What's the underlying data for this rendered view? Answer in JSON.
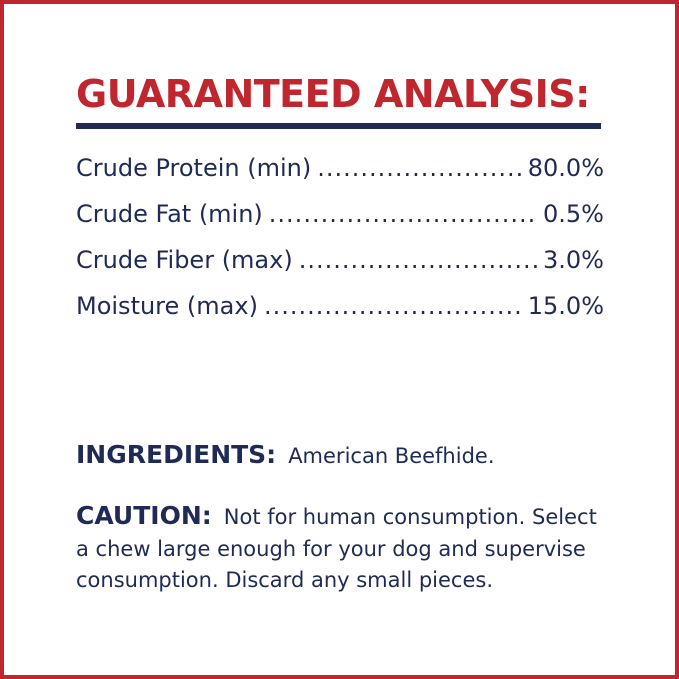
{
  "title": "GUARANTEED ANALYSIS:",
  "analysis": [
    {
      "label": "Crude Protein (min)",
      "value": "80.0%"
    },
    {
      "label": "Crude Fat (min)",
      "value": "0.5%"
    },
    {
      "label": "Crude Fiber (max)",
      "value": "3.0%"
    },
    {
      "label": "Moisture (max)",
      "value": "15.0%"
    }
  ],
  "ingredients": {
    "label": "INGREDIENTS:",
    "text": "American Beefhide."
  },
  "caution": {
    "label": "CAUTION:",
    "text": "Not for human consumption. Select a chew large enough for your dog and supervise consumption. Discard any small pieces."
  },
  "colors": {
    "accent_red": "#c0262d",
    "navy": "#1f2a55"
  }
}
